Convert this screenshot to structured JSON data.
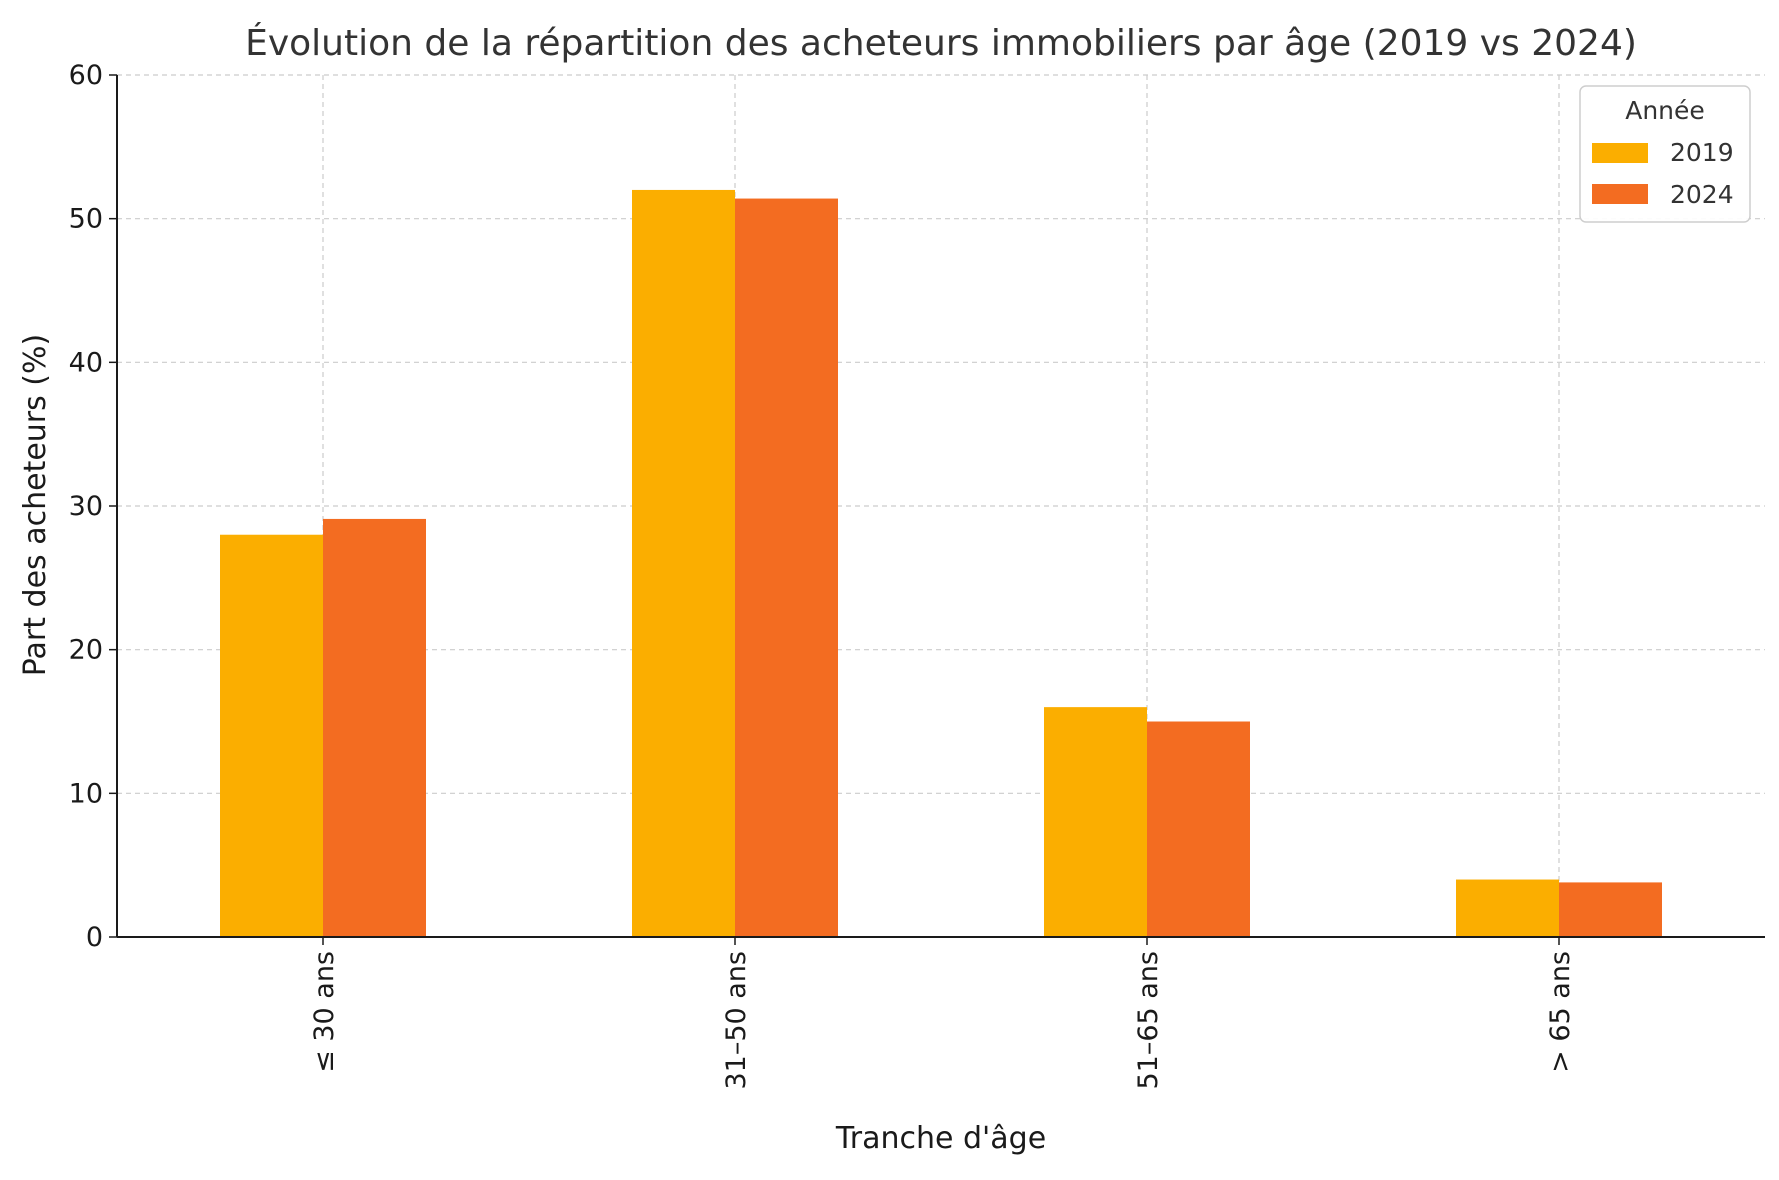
{
  "chart_data": {
    "type": "bar",
    "title": "Évolution de la répartition des acheteurs immobiliers par âge (2019 vs 2024)",
    "xlabel": "Tranche d'âge",
    "ylabel": "Part des acheteurs (%)",
    "categories": [
      "≤ 30 ans",
      "31–50 ans",
      "51–65 ans",
      "> 65 ans"
    ],
    "series": [
      {
        "name": "2019",
        "values": [
          28,
          52,
          16,
          4
        ],
        "color": "#FBAE00"
      },
      {
        "name": "2024",
        "values": [
          29.1,
          51.4,
          15,
          3.8
        ],
        "color": "#F36C21"
      }
    ],
    "ylim": [
      0,
      60
    ],
    "yticks": [
      0,
      10,
      20,
      30,
      40,
      50,
      60
    ],
    "grid": true,
    "legend": {
      "title": "Année",
      "placement": "top-right"
    }
  }
}
